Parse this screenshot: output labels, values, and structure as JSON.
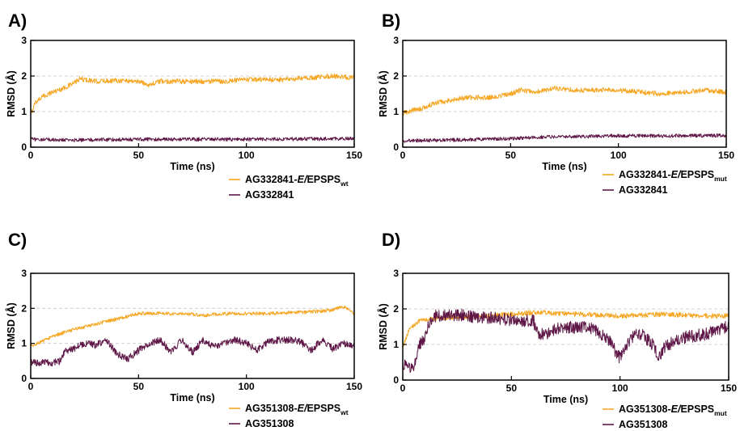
{
  "colors": {
    "complex": "#f5a623",
    "ligand": "#5e1747",
    "grid": "#c9c9c9",
    "frame": "#000000"
  },
  "chart_data": [
    {
      "type": "line",
      "panel_label": "A)",
      "xlabel": "Time (ns)",
      "ylabel": "RMSD (Å)",
      "xlim": [
        0,
        150
      ],
      "ylim": [
        0,
        3
      ],
      "xticks": [
        "0",
        "50",
        "100",
        "150"
      ],
      "yticks": [
        "0",
        "1",
        "2",
        "3"
      ],
      "grid": "horizontal dashed",
      "legend_position": "bottom-right",
      "series": [
        {
          "name": "AG332841-",
          "name_italic": "E/",
          "name_main": "EPSPS",
          "name_sub": "wt",
          "color_key": "complex",
          "noise": 0.07,
          "x": [
            0,
            2,
            5,
            10,
            15,
            20,
            23,
            30,
            40,
            50,
            55,
            60,
            75,
            90,
            100,
            110,
            120,
            130,
            140,
            150
          ],
          "y": [
            0.9,
            1.25,
            1.4,
            1.55,
            1.65,
            1.8,
            1.92,
            1.85,
            1.88,
            1.85,
            1.75,
            1.85,
            1.85,
            1.85,
            1.9,
            1.9,
            1.9,
            1.95,
            2.0,
            1.95
          ]
        },
        {
          "name": "AG332841",
          "color_key": "ligand",
          "noise": 0.05,
          "x": [
            0,
            20,
            50,
            100,
            150
          ],
          "y": [
            0.22,
            0.2,
            0.22,
            0.22,
            0.24
          ]
        }
      ]
    },
    {
      "type": "line",
      "panel_label": "B)",
      "xlabel": "Time (ns)",
      "ylabel": "RMSD (Å)",
      "xlim": [
        0,
        150
      ],
      "ylim": [
        0,
        3
      ],
      "xticks": [
        "0",
        "50",
        "100",
        "150"
      ],
      "yticks": [
        "0",
        "1",
        "2",
        "3"
      ],
      "grid": "horizontal dashed",
      "legend_position": "bottom-right",
      "series": [
        {
          "name": "AG332841-",
          "name_italic": "E/",
          "name_main": "EPSPS",
          "name_sub": "mut",
          "color_key": "complex",
          "noise": 0.07,
          "x": [
            0,
            5,
            10,
            15,
            20,
            30,
            40,
            50,
            55,
            60,
            70,
            80,
            90,
            100,
            110,
            120,
            130,
            140,
            150
          ],
          "y": [
            0.95,
            1.05,
            1.1,
            1.25,
            1.3,
            1.4,
            1.4,
            1.5,
            1.6,
            1.55,
            1.65,
            1.6,
            1.6,
            1.6,
            1.55,
            1.5,
            1.55,
            1.6,
            1.55
          ]
        },
        {
          "name": "AG332841",
          "color_key": "ligand",
          "noise": 0.05,
          "x": [
            0,
            20,
            40,
            60,
            80,
            100,
            120,
            150
          ],
          "y": [
            0.18,
            0.2,
            0.22,
            0.27,
            0.3,
            0.32,
            0.32,
            0.33
          ]
        }
      ]
    },
    {
      "type": "line",
      "panel_label": "C)",
      "xlabel": "Time (ns)",
      "ylabel": "RMSD (Å)",
      "xlim": [
        0,
        150
      ],
      "ylim": [
        0,
        3
      ],
      "xticks": [
        "0",
        "50",
        "100",
        "150"
      ],
      "yticks": [
        "0",
        "1",
        "2",
        "3"
      ],
      "grid": "horizontal dashed",
      "legend_position": "bottom-right",
      "series": [
        {
          "name": "AG351308-",
          "name_italic": "E/",
          "name_main": "EPSPS",
          "name_sub": "wt",
          "color_key": "complex",
          "noise": 0.05,
          "x": [
            0,
            5,
            10,
            20,
            30,
            40,
            50,
            60,
            70,
            80,
            90,
            100,
            110,
            120,
            130,
            140,
            145,
            150
          ],
          "y": [
            0.9,
            1.05,
            1.2,
            1.4,
            1.55,
            1.7,
            1.85,
            1.85,
            1.85,
            1.8,
            1.85,
            1.85,
            1.85,
            1.88,
            1.9,
            1.95,
            2.05,
            1.85
          ]
        },
        {
          "name": "AG351308",
          "color_key": "ligand",
          "noise": 0.1,
          "x": [
            0,
            5,
            10,
            14,
            16,
            20,
            25,
            30,
            35,
            40,
            45,
            50,
            55,
            60,
            65,
            70,
            75,
            80,
            85,
            90,
            95,
            100,
            105,
            110,
            115,
            120,
            125,
            130,
            135,
            140,
            145,
            150
          ],
          "y": [
            0.45,
            0.45,
            0.45,
            0.5,
            0.8,
            0.85,
            1.0,
            0.95,
            1.1,
            0.7,
            0.55,
            0.8,
            1.0,
            1.1,
            0.75,
            1.1,
            0.75,
            1.1,
            0.9,
            1.0,
            1.1,
            1.0,
            0.8,
            1.05,
            1.1,
            1.1,
            1.05,
            0.8,
            1.1,
            0.85,
            1.0,
            0.95
          ]
        }
      ]
    },
    {
      "type": "line",
      "panel_label": "D)",
      "xlabel": "Time (ns)",
      "ylabel": "RMSD (Å)",
      "xlim": [
        0,
        150
      ],
      "ylim": [
        0,
        3
      ],
      "xticks": [
        "0",
        "50",
        "100",
        "150"
      ],
      "yticks": [
        "0",
        "1",
        "2",
        "3"
      ],
      "grid": "horizontal dashed",
      "legend_position": "bottom-right",
      "series": [
        {
          "name": "AG351308-",
          "name_italic": "E/",
          "name_main": "EPSPS",
          "name_sub": "mut",
          "color_key": "complex",
          "noise": 0.07,
          "x": [
            0,
            3,
            6,
            10,
            20,
            40,
            60,
            80,
            100,
            120,
            140,
            150
          ],
          "y": [
            0.95,
            1.4,
            1.6,
            1.7,
            1.75,
            1.8,
            1.9,
            1.85,
            1.8,
            1.85,
            1.8,
            1.8
          ]
        },
        {
          "name": "AG351308",
          "color_key": "ligand",
          "noise": 0.18,
          "x": [
            0,
            3,
            5,
            7,
            10,
            12,
            15,
            20,
            30,
            40,
            50,
            55,
            60,
            62,
            65,
            70,
            75,
            80,
            85,
            90,
            95,
            98,
            100,
            105,
            110,
            115,
            118,
            120,
            125,
            130,
            140,
            150
          ],
          "y": [
            0.5,
            0.3,
            0.3,
            0.9,
            1.2,
            1.6,
            1.8,
            1.85,
            1.8,
            1.75,
            1.7,
            1.65,
            1.7,
            1.3,
            1.3,
            1.4,
            1.5,
            1.45,
            1.5,
            1.35,
            1.1,
            0.8,
            0.6,
            1.2,
            1.3,
            1.0,
            0.6,
            0.9,
            1.1,
            1.2,
            1.3,
            1.5
          ]
        }
      ]
    }
  ]
}
